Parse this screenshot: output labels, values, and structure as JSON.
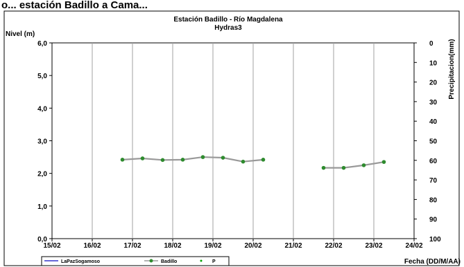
{
  "top_text": "o... estación Badillo a Cama...",
  "chart_data": {
    "type": "line",
    "title": "Estación Badillo - Río Magdalena",
    "subtitle": "Hydras3",
    "ylabel": "Nivel (m)",
    "y2label": "Precipitacion(mm)",
    "xlabel": "Fecha (DD/M/AA)",
    "x_ticks": [
      "15/02",
      "16/02",
      "17/02",
      "18/02",
      "19/02",
      "20/02",
      "21/02",
      "22/02",
      "23/02",
      "24/02"
    ],
    "y_ticks": [
      "0,0",
      "1,0",
      "2,0",
      "3,0",
      "4,0",
      "5,0",
      "6,0"
    ],
    "y2_ticks": [
      "0",
      "10",
      "20",
      "30",
      "40",
      "50",
      "60",
      "70",
      "80",
      "90",
      "100"
    ],
    "ylim": [
      0,
      6
    ],
    "y2lim": [
      0,
      100
    ],
    "y2_reversed": true,
    "grid": "vertical",
    "legend_position": "bottom-left",
    "series": [
      {
        "name": "LaPazSogamoso",
        "color": "#3333cc",
        "x": [],
        "y": []
      },
      {
        "name": "Badillo",
        "color": "#2e8b2e",
        "line_color": "#999999",
        "x": [
          "16/02 18:00",
          "17/02 06:00",
          "17/02 18:00",
          "18/02 06:00",
          "18/02 18:00",
          "19/02 06:00",
          "19/02 18:00",
          "20/02 06:00",
          "21/02 18:00",
          "22/02 06:00",
          "22/02 18:00",
          "23/02 06:00"
        ],
        "y": [
          2.42,
          2.46,
          2.41,
          2.42,
          2.5,
          2.48,
          2.36,
          2.42,
          2.17,
          2.17,
          2.25,
          2.35
        ]
      },
      {
        "name": "P",
        "color": "#00a000",
        "x": [],
        "y": []
      }
    ]
  }
}
